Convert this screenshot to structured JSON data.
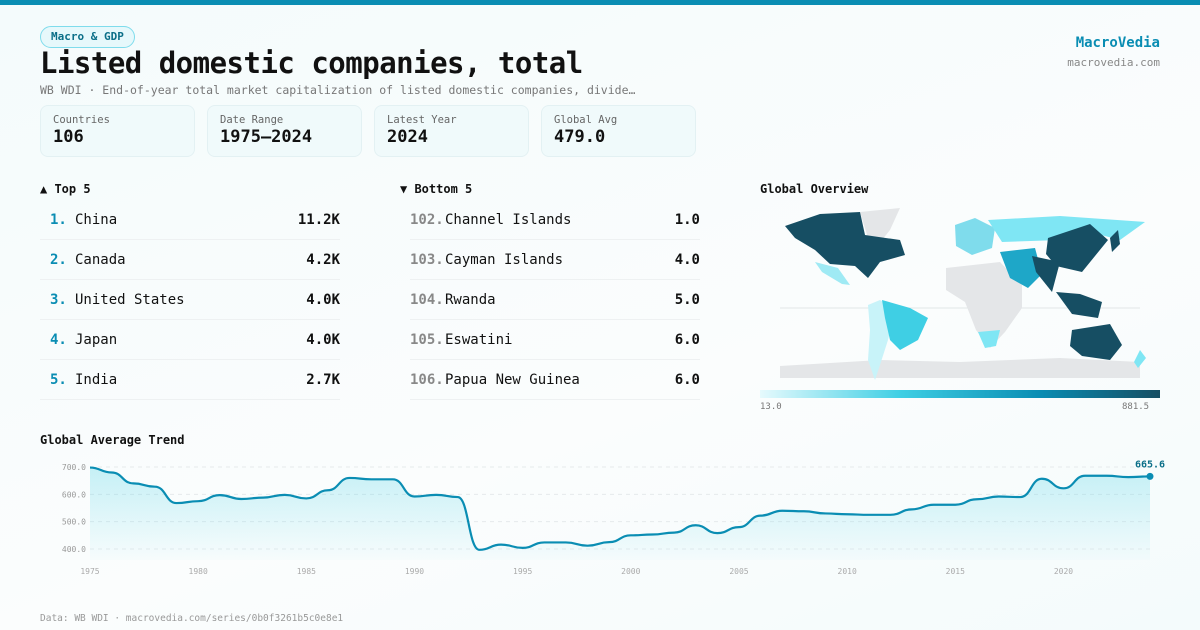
{
  "category": "Macro & GDP",
  "title": "Listed domestic companies, total",
  "subtitle": "WB WDI · End-of-year total market capitalization of listed domestic companies, divide…",
  "brand": {
    "name": "MacroVedia",
    "url": "macrovedia.com"
  },
  "stats": [
    {
      "label": "Countries",
      "value": "106"
    },
    {
      "label": "Date Range",
      "value": "1975–2024"
    },
    {
      "label": "Latest Year",
      "value": "2024"
    },
    {
      "label": "Global Avg",
      "value": "479.0"
    }
  ],
  "top": {
    "title": "▲ Top 5",
    "items": [
      {
        "rank": "1.",
        "name": "China",
        "value": "11.2K"
      },
      {
        "rank": "2.",
        "name": "Canada",
        "value": "4.2K"
      },
      {
        "rank": "3.",
        "name": "United States",
        "value": "4.0K"
      },
      {
        "rank": "4.",
        "name": "Japan",
        "value": "4.0K"
      },
      {
        "rank": "5.",
        "name": "India",
        "value": "2.7K"
      }
    ]
  },
  "bottom": {
    "title": "▼ Bottom 5",
    "items": [
      {
        "rank": "102.",
        "name": "Channel Islands",
        "value": "1.0"
      },
      {
        "rank": "103.",
        "name": "Cayman Islands",
        "value": "4.0"
      },
      {
        "rank": "104.",
        "name": "Rwanda",
        "value": "5.0"
      },
      {
        "rank": "105.",
        "name": "Eswatini",
        "value": "6.0"
      },
      {
        "rank": "106.",
        "name": "Papua New Guinea",
        "value": "6.0"
      }
    ]
  },
  "map": {
    "title": "Global Overview",
    "min_label": "13.0",
    "max_label": "881.5",
    "colors": {
      "low": "#e6fafd",
      "mid": "#3fcfe4",
      "high": "#164e63",
      "nodata": "#e4e6e8"
    }
  },
  "chart_data": {
    "type": "area",
    "title": "Global Average Trend",
    "x": [
      1975,
      1976,
      1977,
      1978,
      1979,
      1980,
      1981,
      1982,
      1983,
      1984,
      1985,
      1986,
      1987,
      1988,
      1989,
      1990,
      1991,
      1992,
      1993,
      1994,
      1995,
      1996,
      1997,
      1998,
      1999,
      2000,
      2001,
      2002,
      2003,
      2004,
      2005,
      2006,
      2007,
      2008,
      2009,
      2010,
      2011,
      2012,
      2013,
      2014,
      2015,
      2016,
      2017,
      2018,
      2019,
      2020,
      2021,
      2022,
      2023,
      2024
    ],
    "y": [
      698,
      680,
      640,
      628,
      568,
      575,
      597,
      583,
      588,
      598,
      585,
      615,
      660,
      655,
      655,
      592,
      598,
      590,
      397,
      416,
      404,
      424,
      424,
      412,
      425,
      450,
      453,
      460,
      487,
      458,
      480,
      522,
      540,
      538,
      530,
      527,
      525,
      525,
      545,
      562,
      562,
      582,
      592,
      590,
      657,
      622,
      668,
      668,
      663,
      665.6
    ],
    "yticks": [
      "400.0",
      "500.0",
      "600.0",
      "700.0"
    ],
    "xticks": [
      "1975",
      "1980",
      "1985",
      "1990",
      "1995",
      "2000",
      "2005",
      "2010",
      "2015",
      "2020"
    ],
    "ylim": [
      360,
      720
    ],
    "last_label": "665.6",
    "color": "#0a8db3",
    "grid": true
  },
  "footer": "Data: WB WDI · macrovedia.com/series/0b0f3261b5c0e8e1"
}
